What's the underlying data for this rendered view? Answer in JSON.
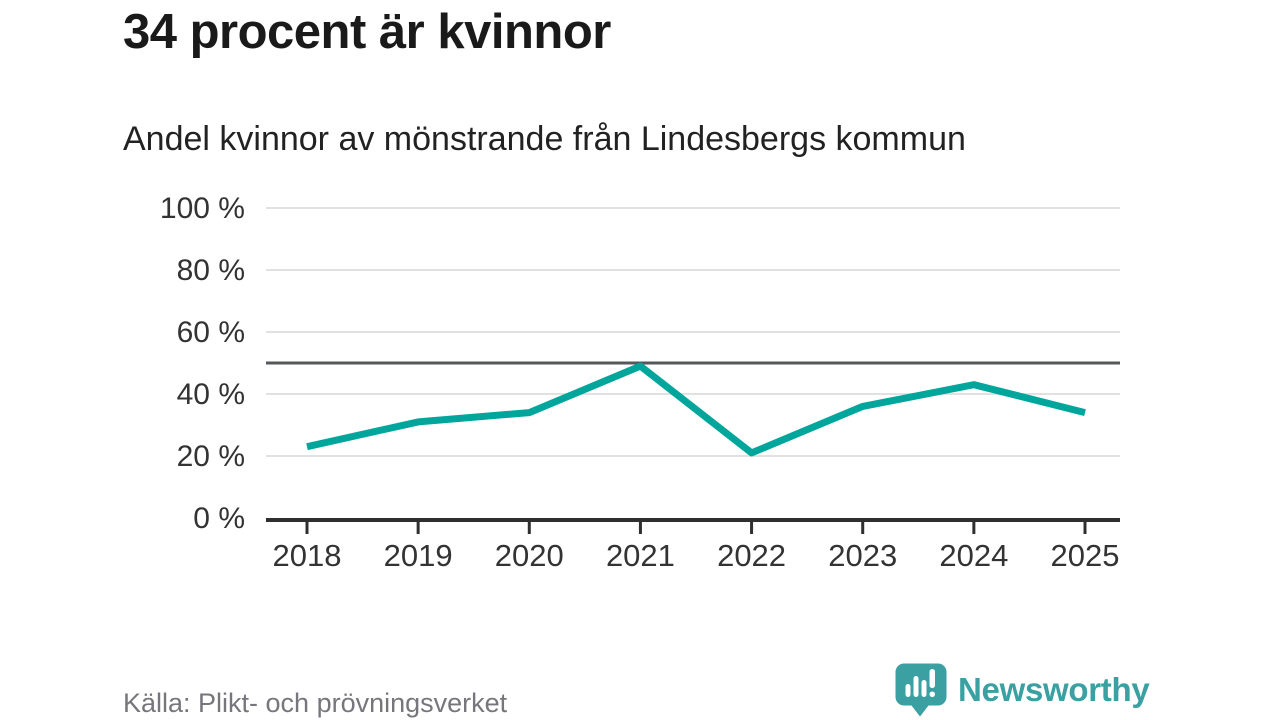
{
  "header": {
    "title": "34 procent är kvinnor",
    "subtitle": "Andel kvinnor av mönstrande från Lindesbergs kommun"
  },
  "chart_data": {
    "type": "line",
    "title": "34 procent är kvinnor",
    "subtitle": "Andel kvinnor av mönstrande från Lindesbergs kommun",
    "x": [
      "2018",
      "2019",
      "2020",
      "2021",
      "2022",
      "2023",
      "2024",
      "2025"
    ],
    "series": [
      {
        "name": "Andel kvinnor av mönstrande",
        "values": [
          23,
          31,
          34,
          49,
          21,
          36,
          43,
          34
        ]
      }
    ],
    "unit": "%",
    "ylim": [
      0,
      100
    ],
    "yticks": [
      {
        "value": 0,
        "label": "0 %"
      },
      {
        "value": 20,
        "label": "20 %"
      },
      {
        "value": 40,
        "label": "40 %"
      },
      {
        "value": 60,
        "label": "60 %"
      },
      {
        "value": 80,
        "label": "80 %"
      },
      {
        "value": 100,
        "label": "100 %"
      }
    ],
    "reference_line": {
      "value": 50
    },
    "grid": "horizontal-only",
    "legend": "none",
    "colors": {
      "line": "#00a69c",
      "reference": "#56575b",
      "grid": "#e1e1e1",
      "axis": "#2f2f2f",
      "tick_text": "#333333"
    }
  },
  "footer": {
    "source": "Källa: Plikt- och prövningsverket",
    "logo_text": "Newsworthy",
    "logo_color": "#3aa0a1"
  }
}
